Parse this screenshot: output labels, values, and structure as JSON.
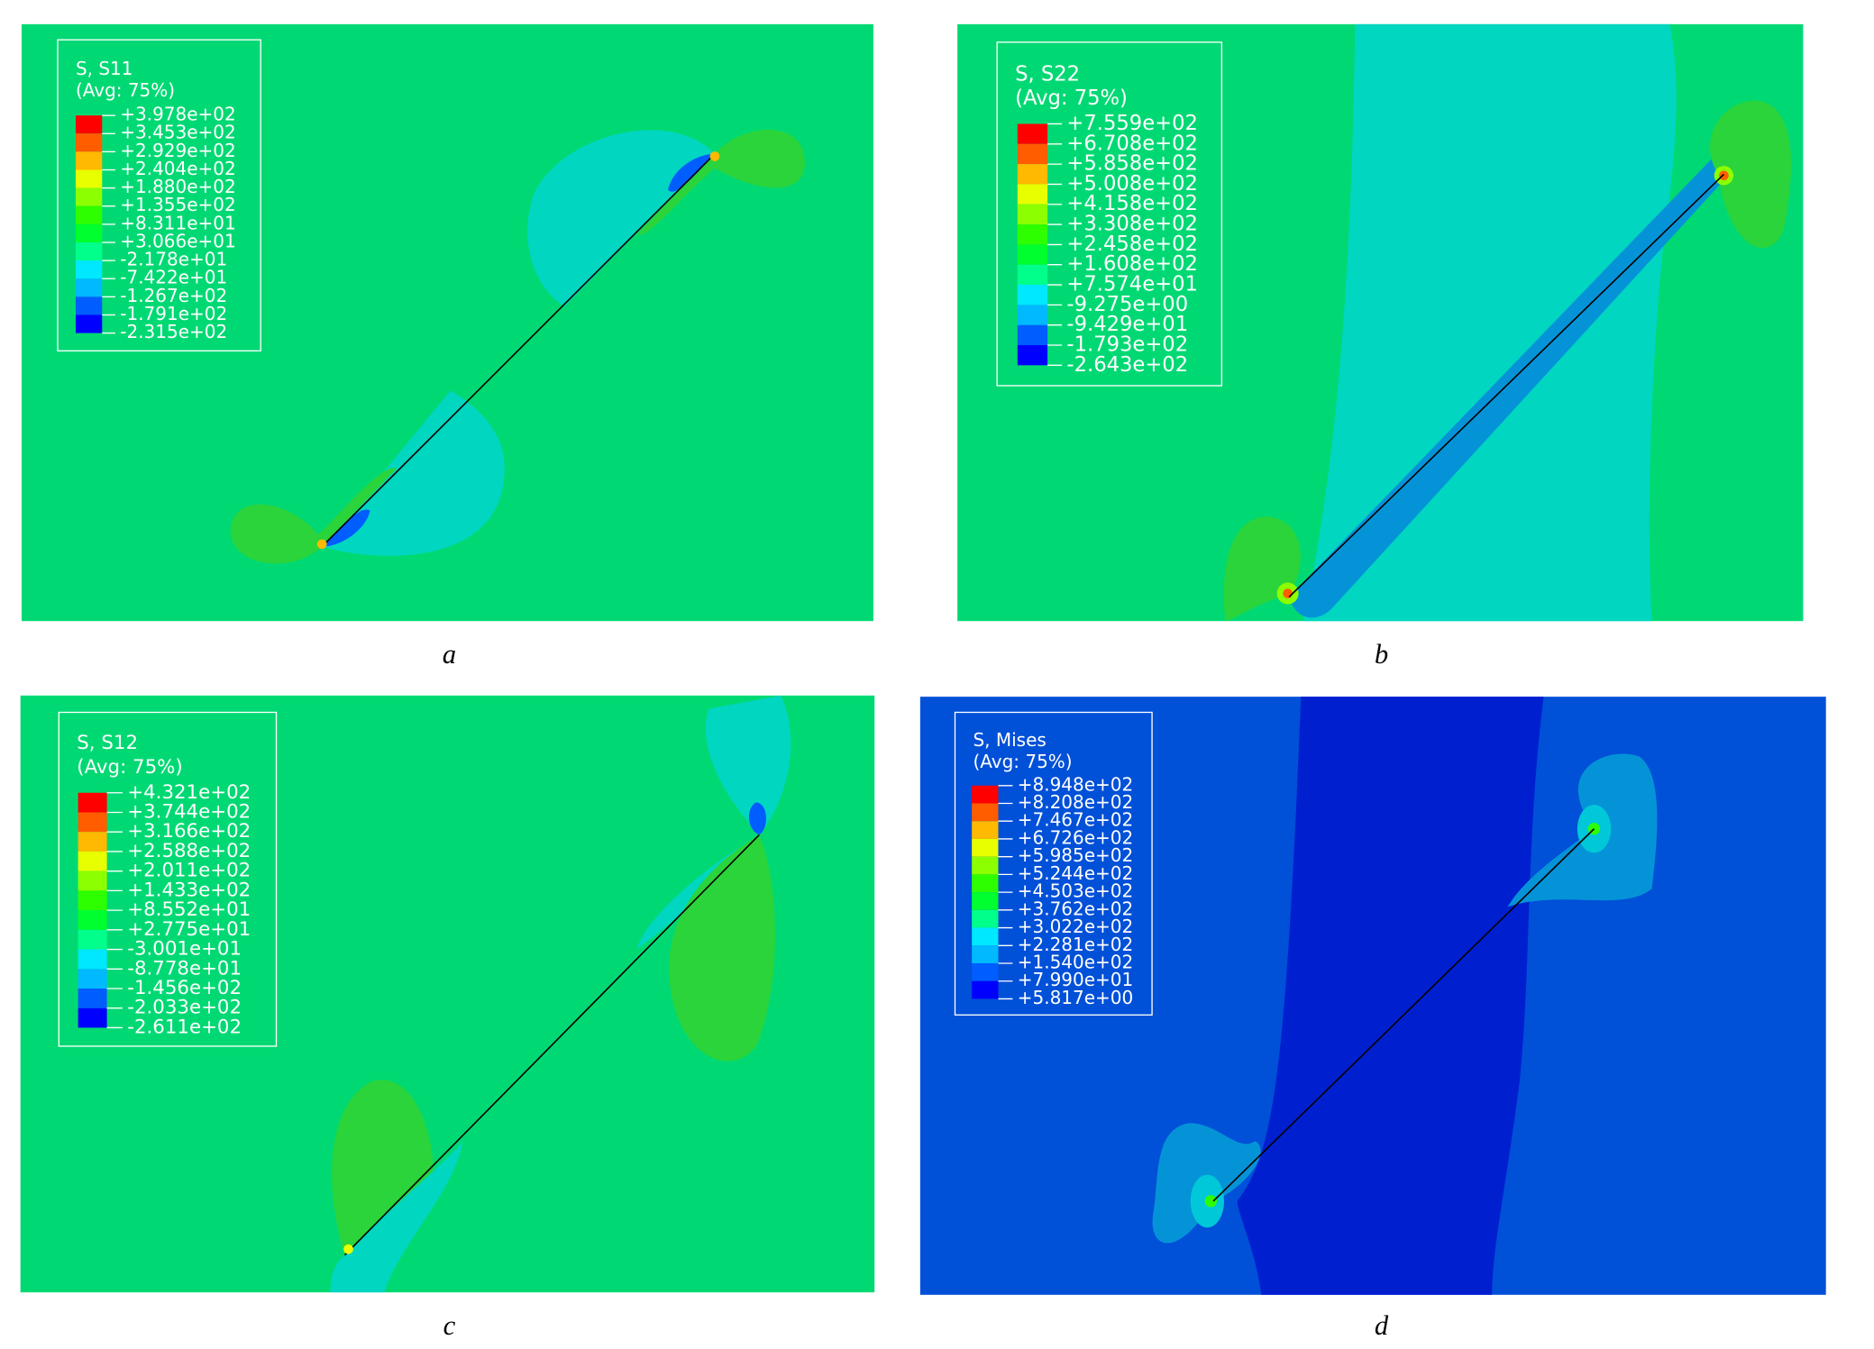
{
  "panels": [
    {
      "caption": "a",
      "legend": {
        "title": "S, S11",
        "subtitle": "(Avg: 75%)",
        "labels": [
          "+3.978e+02",
          "+3.453e+02",
          "+2.929e+02",
          "+2.404e+02",
          "+1.880e+02",
          "+1.355e+02",
          "+8.311e+01",
          "+3.066e+01",
          "-2.178e+01",
          "-7.422e+01",
          "-1.267e+02",
          "-1.791e+02",
          "-2.315e+02"
        ]
      }
    },
    {
      "caption": "b",
      "legend": {
        "title": "S, S22",
        "subtitle": "(Avg: 75%)",
        "labels": [
          "+7.559e+02",
          "+6.708e+02",
          "+5.858e+02",
          "+5.008e+02",
          "+4.158e+02",
          "+3.308e+02",
          "+2.458e+02",
          "+1.608e+02",
          "+7.574e+01",
          "-9.275e+00",
          "-9.429e+01",
          "-1.793e+02",
          "-2.643e+02"
        ]
      }
    },
    {
      "caption": "c",
      "legend": {
        "title": "S, S12",
        "subtitle": "(Avg: 75%)",
        "labels": [
          "+4.321e+02",
          "+3.744e+02",
          "+3.166e+02",
          "+2.588e+02",
          "+2.011e+02",
          "+1.433e+02",
          "+8.552e+01",
          "+2.775e+01",
          "-3.001e+01",
          "-8.778e+01",
          "-1.456e+02",
          "-2.033e+02",
          "-2.611e+02"
        ]
      }
    },
    {
      "caption": "d",
      "legend": {
        "title": "S, Mises",
        "subtitle": "(Avg: 75%)",
        "labels": [
          "+8.948e+02",
          "+8.208e+02",
          "+7.467e+02",
          "+6.726e+02",
          "+5.985e+02",
          "+5.244e+02",
          "+4.503e+02",
          "+3.762e+02",
          "+3.022e+02",
          "+2.281e+02",
          "+1.540e+02",
          "+7.990e+01",
          "+5.817e+00"
        ]
      }
    }
  ]
}
